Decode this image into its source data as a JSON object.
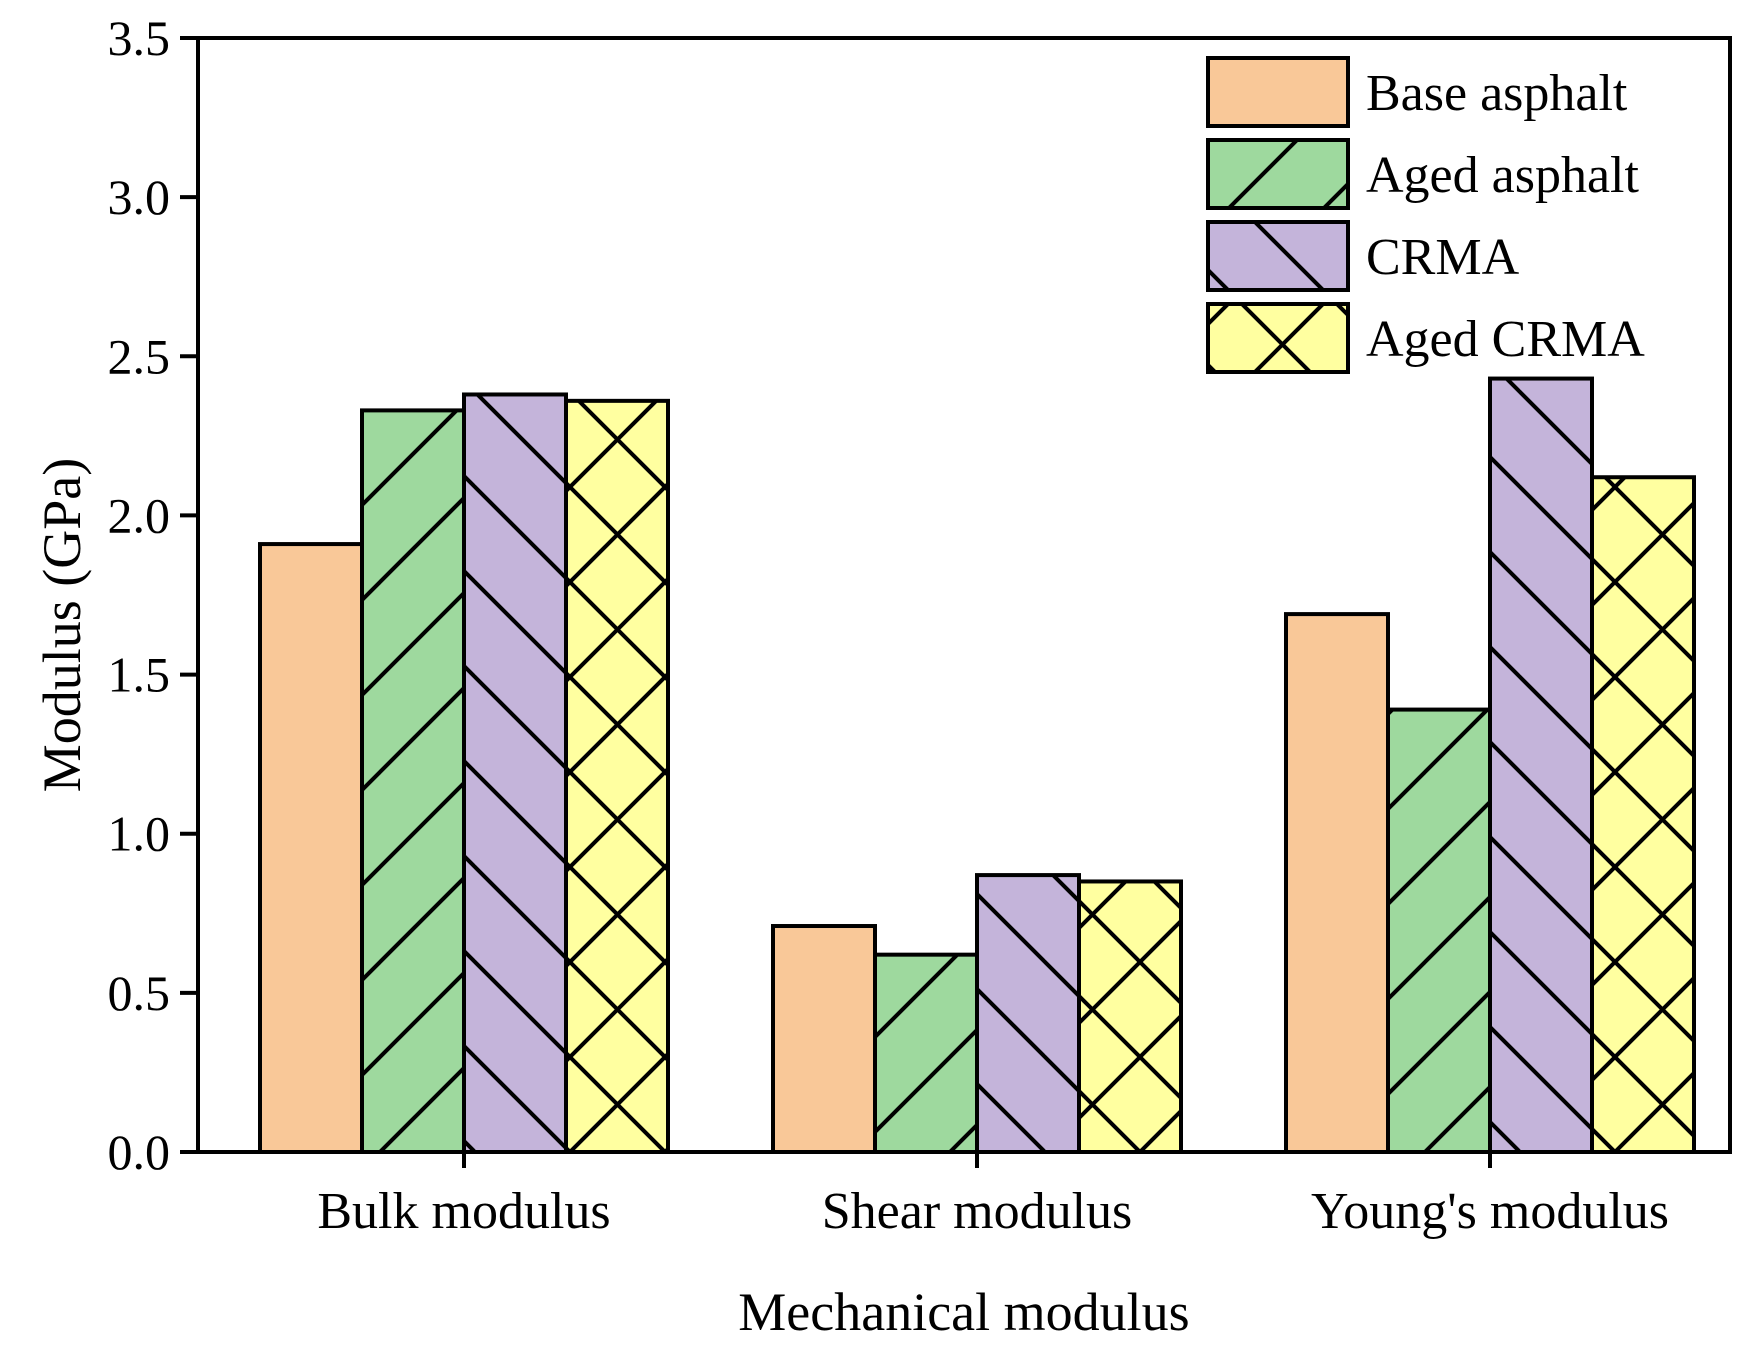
{
  "chart_data": {
    "type": "bar",
    "title": "",
    "xlabel": "Mechanical modulus",
    "ylabel": "Modulus (GPa)",
    "ylim": [
      0,
      3.5
    ],
    "yticks": [
      0.0,
      0.5,
      1.0,
      1.5,
      2.0,
      2.5,
      3.0,
      3.5
    ],
    "ytick_labels": [
      "0.0",
      "0.5",
      "1.0",
      "1.5",
      "2.0",
      "2.5",
      "3.0",
      "3.5"
    ],
    "categories": [
      "Bulk modulus",
      "Shear modulus",
      "Young's modulus"
    ],
    "legend_position": "top-right",
    "grid": false,
    "series": [
      {
        "name": "Base asphalt",
        "values": [
          1.91,
          0.71,
          1.69
        ],
        "color": "#F9C898",
        "pattern": "none"
      },
      {
        "name": "Aged asphalt",
        "values": [
          2.33,
          0.62,
          1.39
        ],
        "color": "#9ED99E",
        "pattern": "forward-diagonal"
      },
      {
        "name": "CRMA",
        "values": [
          2.38,
          0.87,
          2.43
        ],
        "color": "#C4B4DA",
        "pattern": "back-diagonal"
      },
      {
        "name": "Aged CRMA",
        "values": [
          2.36,
          0.85,
          2.12
        ],
        "color": "#FFFFA0",
        "pattern": "crosshatch"
      }
    ]
  }
}
